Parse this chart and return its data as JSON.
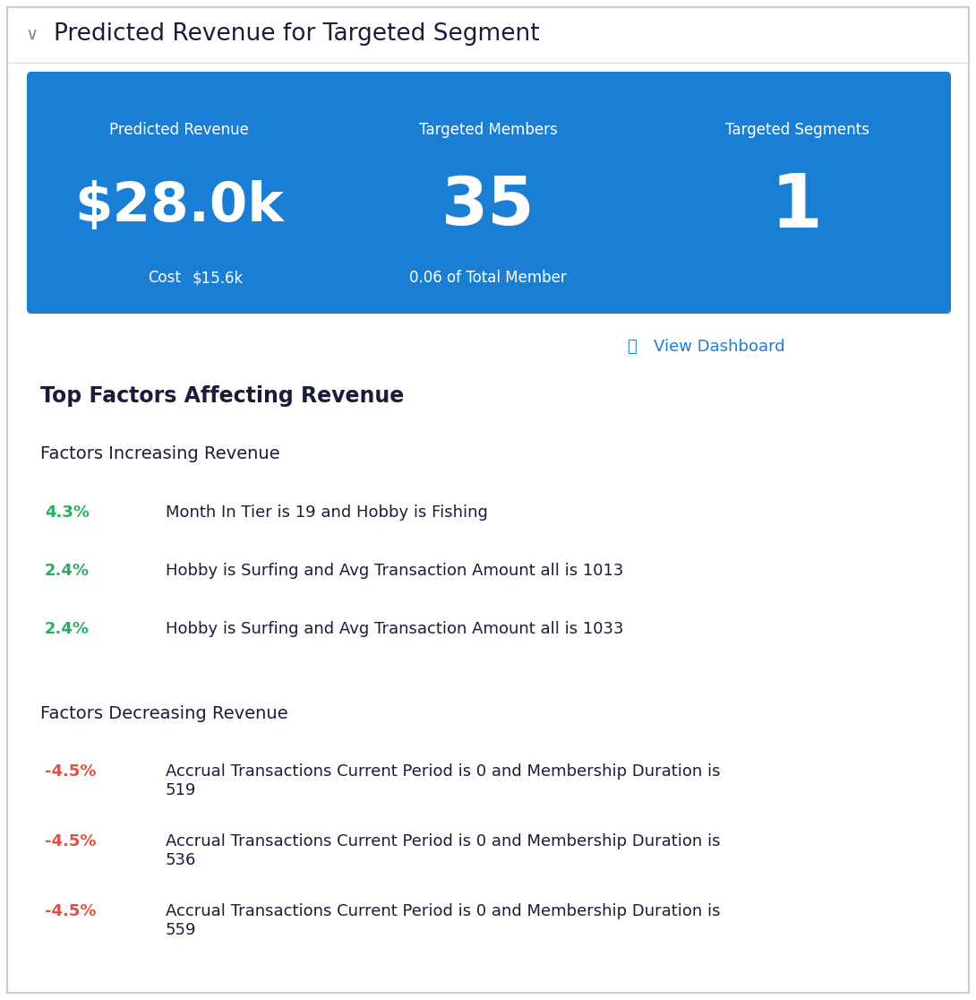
{
  "title": "Predicted Revenue for Targeted Segment",
  "title_color": "#1c1c3a",
  "title_fontsize": 19,
  "chevron": "∨",
  "bg_color": "#f5f5f5",
  "white_bg": "#ffffff",
  "blue_box_color": "#1a7fd4",
  "metrics": [
    {
      "label": "Predicted Revenue",
      "value": "$28.0k",
      "sub_label": "Cost",
      "sub_value": "$15.6k"
    },
    {
      "label": "Targeted Members",
      "value": "35",
      "sub_label": "0.06 of Total Member",
      "sub_value": ""
    },
    {
      "label": "Targeted Segments",
      "value": "1",
      "sub_label": "",
      "sub_value": ""
    }
  ],
  "view_dashboard_text": "View Dashboard",
  "view_dashboard_color": "#1a7fd4",
  "section_title": "Top Factors Affecting Revenue",
  "section_title_fontsize": 17,
  "increasing_header": "Factors Increasing Revenue",
  "decreasing_header": "Factors Decreasing Revenue",
  "header_fontsize": 14,
  "increasing_factors": [
    {
      "pct": "4.3%",
      "desc": "Month In Tier is 19 and Hobby is Fishing"
    },
    {
      "pct": "2.4%",
      "desc": "Hobby is Surfing and Avg Transaction Amount all is 1013"
    },
    {
      "pct": "2.4%",
      "desc": "Hobby is Surfing and Avg Transaction Amount all is 1033"
    }
  ],
  "decreasing_factors": [
    {
      "pct": "-4.5%",
      "desc": "Accrual Transactions Current Period is 0 and Membership Duration is\n519"
    },
    {
      "pct": "-4.5%",
      "desc": "Accrual Transactions Current Period is 0 and Membership Duration is\n536"
    },
    {
      "pct": "-4.5%",
      "desc": "Accrual Transactions Current Period is 0 and Membership Duration is\n559"
    }
  ],
  "green_color": "#27ae60",
  "red_color": "#e74c3c",
  "factor_pct_fontsize": 13,
  "factor_desc_fontsize": 13,
  "outer_border_color": "#cccccc",
  "separator_color": "#dddddd"
}
